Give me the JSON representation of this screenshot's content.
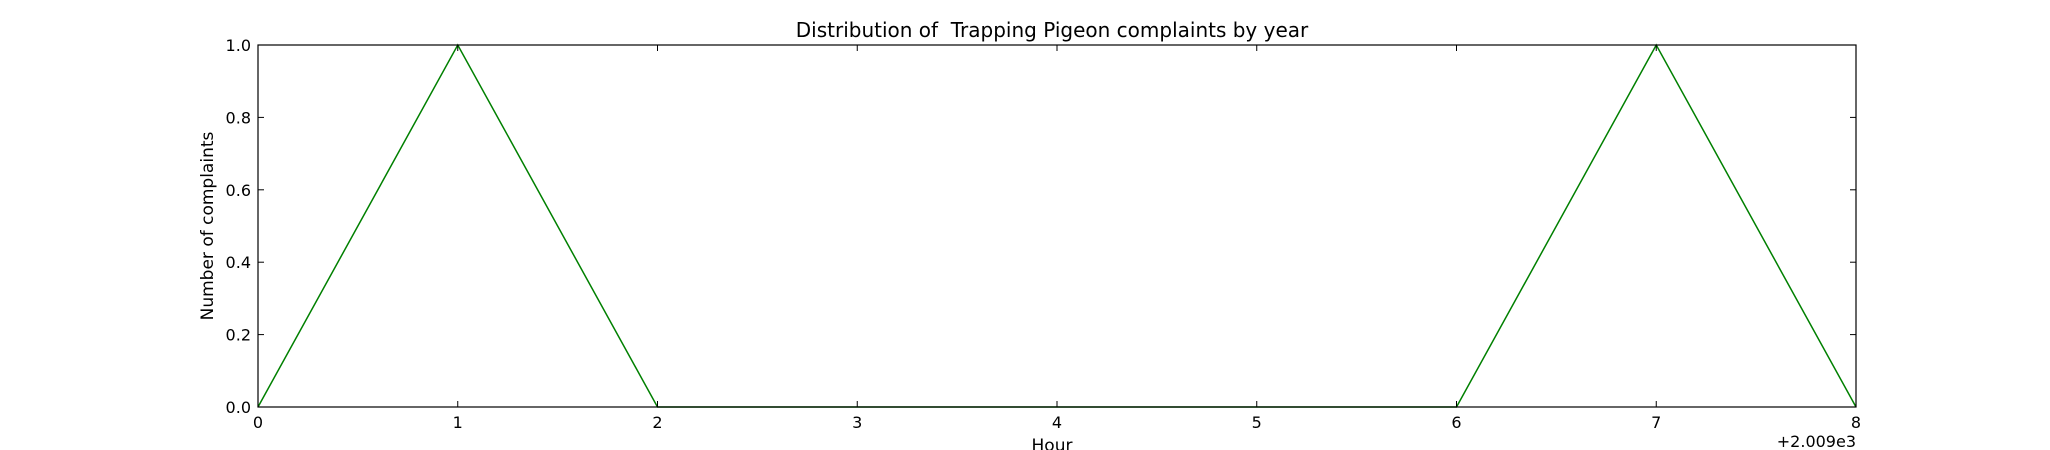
{
  "chart_data": {
    "type": "line",
    "title": "Distribution of  Trapping Pigeon complaints by year",
    "xlabel": "Hour",
    "ylabel": "Number of complaints",
    "x_offset_label": "+2.009e3",
    "xlim": [
      0,
      8
    ],
    "ylim": [
      0,
      1
    ],
    "x_ticks": [
      "0",
      "1",
      "2",
      "3",
      "4",
      "5",
      "6",
      "7",
      "8"
    ],
    "y_ticks": [
      "0.0",
      "0.2",
      "0.4",
      "0.6",
      "0.8",
      "1.0"
    ],
    "grid": false,
    "series": [
      {
        "color": "#008000",
        "x": [
          0,
          1,
          2,
          3,
          4,
          5,
          6,
          7,
          8
        ],
        "y": [
          0,
          1,
          0,
          0,
          0,
          0,
          0,
          1,
          0
        ]
      }
    ]
  }
}
